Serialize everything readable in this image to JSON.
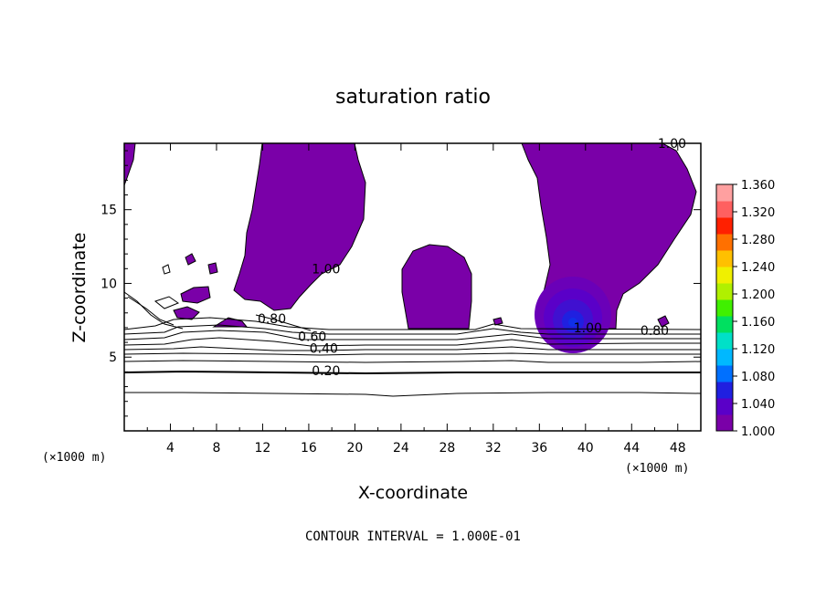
{
  "chart_data": {
    "type": "contour",
    "title": "saturation ratio",
    "xlabel": "X-coordinate",
    "ylabel": "Z-coordinate",
    "x_unit": "(×1000 m)",
    "xlim": [
      0,
      50
    ],
    "ylim": [
      0,
      19.5
    ],
    "x_ticks": [
      4,
      8,
      12,
      16,
      20,
      24,
      28,
      32,
      36,
      40,
      44,
      48
    ],
    "y_ticks": [
      5,
      10,
      15
    ],
    "contour_labels": [
      {
        "text": "1.00",
        "x": 47.5,
        "y": 19.5
      },
      {
        "text": "1.00",
        "x": 17.5,
        "y": 11
      },
      {
        "text": "0.80",
        "x": 12.8,
        "y": 7.6
      },
      {
        "text": "0.60",
        "x": 16.3,
        "y": 6.4
      },
      {
        "text": "0.40",
        "x": 17.3,
        "y": 5.6
      },
      {
        "text": "0.20",
        "x": 17.5,
        "y": 4.1
      },
      {
        "text": "1.00",
        "x": 40.2,
        "y": 7.0
      },
      {
        "text": "0.80",
        "x": 46.0,
        "y": 6.8
      }
    ],
    "colorbar": {
      "ticks": [
        "1.360",
        "1.320",
        "1.280",
        "1.240",
        "1.200",
        "1.160",
        "1.120",
        "1.080",
        "1.040",
        "1.000"
      ],
      "colors": [
        "#7a00a8",
        "#5a00c8",
        "#2020e0",
        "#0070ff",
        "#00b8ff",
        "#00e0c8",
        "#00e060",
        "#40f000",
        "#b0f000",
        "#f0f000",
        "#ffc000",
        "#ff7000",
        "#ff2000",
        "#ff6060",
        "#ffa0a0"
      ],
      "range": [
        1.0,
        1.36
      ]
    },
    "regions_value": "saturation ratio > 1.00 shaded",
    "supersaturation_peak": {
      "x": 38.8,
      "y": 7.6
    }
  },
  "footer": {
    "contour_interval": "CONTOUR INTERVAL = 1.000E-01"
  }
}
